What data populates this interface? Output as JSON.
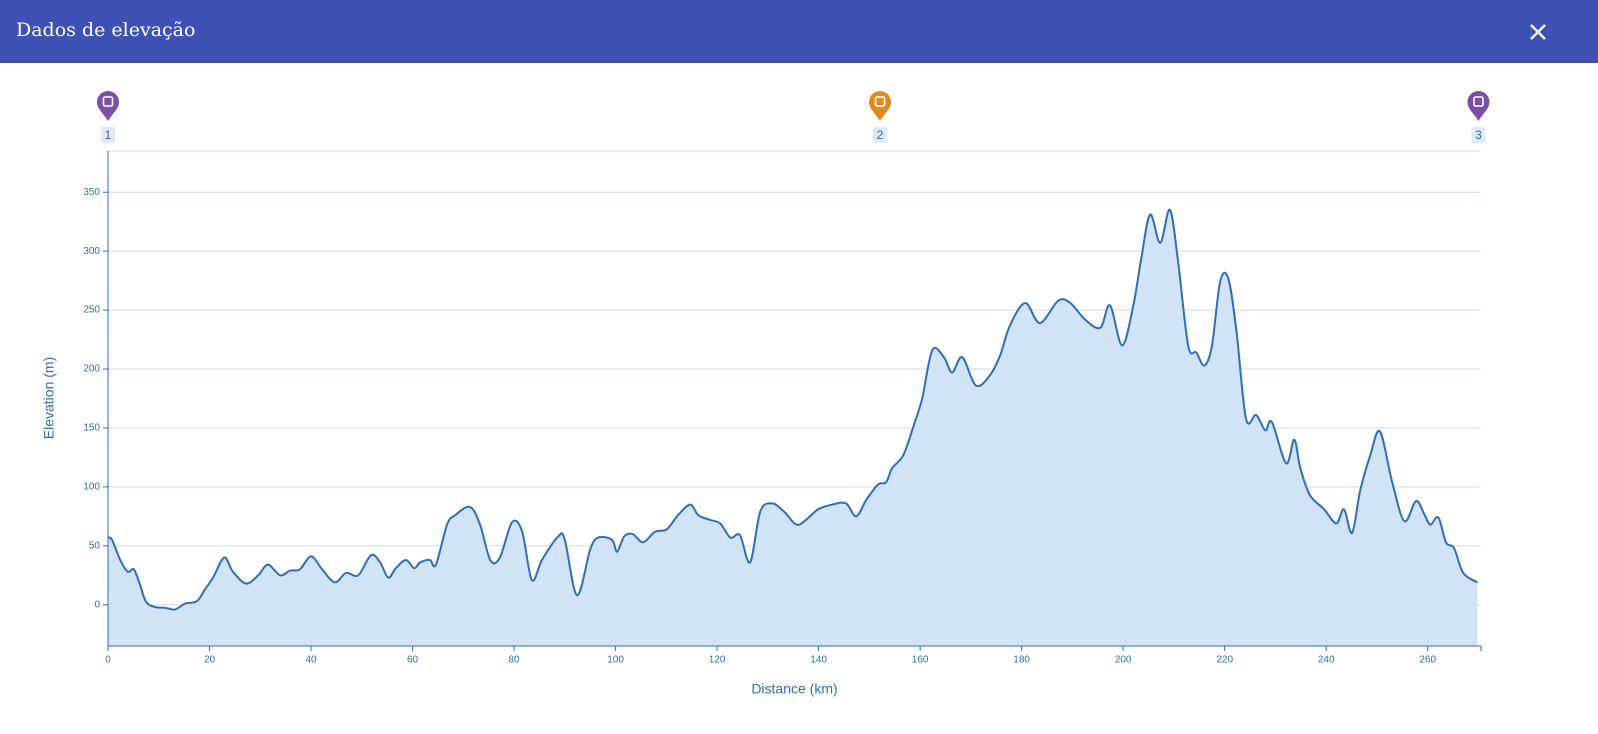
{
  "header": {
    "title": "Dados de elevação"
  },
  "chart_data": {
    "type": "area",
    "x_label": "Distance (km)",
    "y_label": "Elevation (m)",
    "xlim": [
      0,
      270.5
    ],
    "ylim": [
      -35,
      385
    ],
    "xticks": [
      0,
      20,
      40,
      60,
      80,
      100,
      120,
      140,
      160,
      180,
      200,
      220,
      240,
      260
    ],
    "yticks": [
      0,
      50,
      100,
      150,
      200,
      250,
      300,
      350
    ],
    "grid": true,
    "line_color": "#2e6fb8",
    "fill_color": "#d2e3f5",
    "markers": [
      {
        "x": 0,
        "label": "1",
        "color": "#7b4fa8"
      },
      {
        "x": 152.1,
        "label": "2",
        "color": "#e08a1e"
      },
      {
        "x": 270,
        "label": "3",
        "color": "#7b4fa8"
      }
    ],
    "x": [
      0,
      0.8,
      2.4,
      3.9,
      5.1,
      6.3,
      7.5,
      9.3,
      11.2,
      13.2,
      15.2,
      17.5,
      19.1,
      20.7,
      22.9,
      24.6,
      27.2,
      29.6,
      31.5,
      33.9,
      35.9,
      37.8,
      40,
      42.2,
      44.7,
      46.9,
      49.3,
      51.8,
      53.6,
      55.2,
      56.7,
      58.7,
      60.3,
      61.5,
      63.4,
      64.6,
      66.8,
      68.4,
      71.3,
      73.3,
      75.3,
      77.2,
      79.6,
      81.6,
      83.5,
      85.5,
      88.7,
      90,
      92.4,
      95,
      96.6,
      99.3,
      100.3,
      101.7,
      103.4,
      105.4,
      107.8,
      110.1,
      112.3,
      114.7,
      116.3,
      118.6,
      120.6,
      122.6,
      124.5,
      126.5,
      128.5,
      130.8,
      133.2,
      135.6,
      137.5,
      139.9,
      142.7,
      145.4,
      147.4,
      149.4,
      151.7,
      153.3,
      154.5,
      156.7,
      158.8,
      160.4,
      162.4,
      164.7,
      166.3,
      168.3,
      171,
      173.8,
      175.8,
      177.7,
      180.7,
      183.6,
      187.2,
      189.6,
      192.5,
      195.5,
      197.4,
      199.8,
      202,
      203.5,
      205.3,
      207.3,
      209.2,
      210.8,
      212.8,
      214.4,
      216,
      217.5,
      219.1,
      220.7,
      222.3,
      224.2,
      226.2,
      228,
      229.3,
      232.1,
      233.7,
      234.9,
      236.8,
      239.6,
      242,
      243.5,
      245.1,
      246.7,
      248.7,
      250.6,
      253,
      255.4,
      257.7,
      259.3,
      260.5,
      262.1,
      263.6,
      265.2,
      267,
      269.8
    ],
    "values": [
      57,
      55,
      38,
      28,
      30,
      17,
      2.5,
      -2,
      -2.5,
      -4,
      1,
      3,
      13,
      23,
      40,
      28,
      18,
      25,
      34,
      25,
      29,
      30,
      41,
      30,
      19,
      27,
      25,
      42,
      36,
      23,
      31,
      38,
      31,
      36,
      38,
      34,
      68,
      76,
      83,
      68,
      38,
      40,
      70,
      62,
      21,
      38,
      58,
      55,
      8,
      47,
      57,
      55,
      45,
      58,
      60,
      53,
      62,
      64,
      76,
      85,
      76,
      72,
      69,
      57,
      59,
      36,
      79,
      86,
      79,
      68,
      72,
      81,
      85,
      86,
      75,
      89,
      102,
      104,
      116,
      127,
      153,
      175,
      216,
      210,
      197,
      210,
      186,
      195,
      212,
      237,
      256,
      239,
      258,
      256,
      242,
      235,
      254,
      220,
      254,
      292,
      331,
      307,
      335,
      292,
      220,
      214,
      203,
      220,
      274,
      277,
      233,
      158,
      161,
      148,
      155,
      120,
      140,
      116,
      93,
      81,
      69,
      81,
      61,
      97,
      127,
      147,
      104,
      71,
      88,
      77,
      68,
      74,
      53,
      48,
      27,
      19
    ]
  }
}
